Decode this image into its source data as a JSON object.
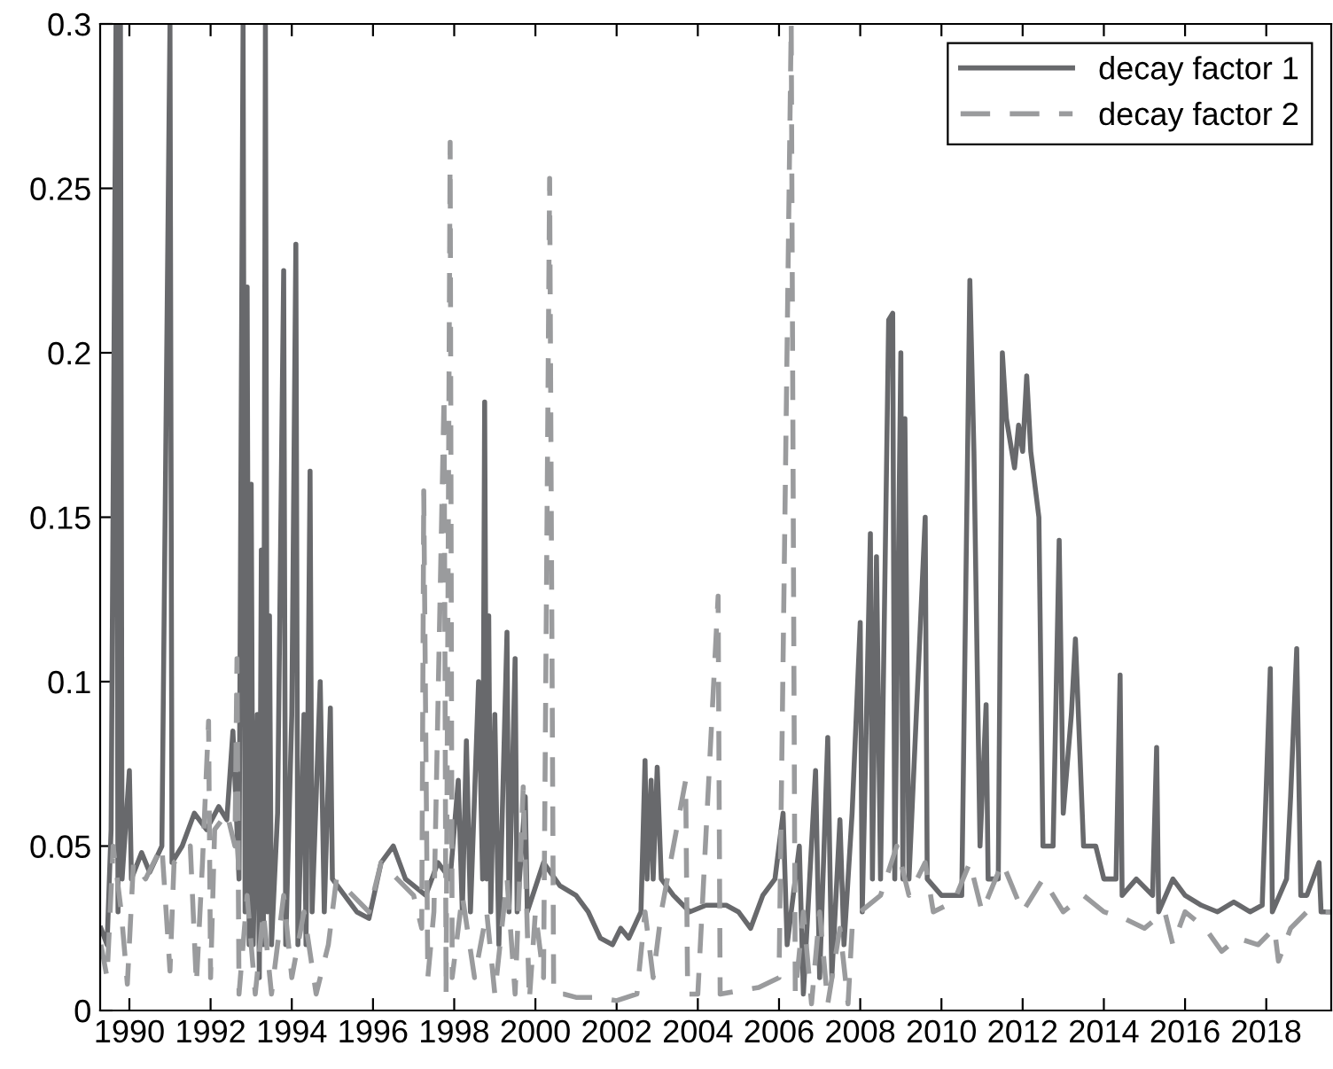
{
  "chart_data": {
    "type": "line",
    "xlim": [
      1989.28,
      2019.6
    ],
    "xticks": [
      1990,
      1992,
      1994,
      1996,
      1998,
      2000,
      2002,
      2004,
      2006,
      2008,
      2010,
      2012,
      2014,
      2016,
      2018
    ],
    "ylim": [
      0,
      0.3
    ],
    "yticks": [
      0,
      0.05,
      0.1,
      0.15,
      0.2,
      0.25,
      0.3
    ],
    "grid": false,
    "legend": "top right",
    "series": [
      {
        "name": "decay factor 1",
        "color": "#68696c",
        "line_style": "solid",
        "x": [
          1989.3,
          1989.45,
          1989.55,
          1989.67,
          1989.72,
          1989.78,
          1989.82,
          1990.0,
          1990.05,
          1990.3,
          1990.5,
          1990.8,
          1991.0,
          1991.05,
          1991.3,
          1991.6,
          1991.9,
          1992.2,
          1992.4,
          1992.55,
          1992.7,
          1992.8,
          1992.85,
          1992.9,
          1992.95,
          1993.0,
          1993.05,
          1993.15,
          1993.2,
          1993.25,
          1993.3,
          1993.35,
          1993.4,
          1993.45,
          1993.5,
          1993.65,
          1993.8,
          1993.85,
          1994.0,
          1994.1,
          1994.15,
          1994.3,
          1994.35,
          1994.45,
          1994.5,
          1994.7,
          1994.8,
          1994.95,
          1995.0,
          1995.3,
          1995.6,
          1995.9,
          1996.2,
          1996.5,
          1996.8,
          1997.3,
          1997.6,
          1997.9,
          1998.1,
          1998.2,
          1998.3,
          1998.4,
          1998.6,
          1998.7,
          1998.75,
          1998.8,
          1998.85,
          1998.9,
          1999.0,
          1999.1,
          1999.3,
          1999.35,
          1999.5,
          1999.55,
          1999.75,
          1999.8,
          2000.2,
          2000.6,
          2001.0,
          2001.3,
          2001.6,
          2001.9,
          2002.1,
          2002.3,
          2002.6,
          2002.7,
          2002.75,
          2002.85,
          2002.9,
          2003.0,
          2003.1,
          2003.4,
          2003.8,
          2004.2,
          2004.7,
          2005.0,
          2005.3,
          2005.6,
          2005.9,
          2006.1,
          2006.2,
          2006.5,
          2006.6,
          2006.9,
          2007.0,
          2007.2,
          2007.3,
          2007.5,
          2007.6,
          2007.8,
          2008.0,
          2008.05,
          2008.25,
          2008.3,
          2008.4,
          2008.5,
          2008.7,
          2008.8,
          2008.85,
          2009.0,
          2009.05,
          2009.1,
          2009.2,
          2009.6,
          2009.65,
          2010.0,
          2010.5,
          2010.7,
          2010.8,
          2010.95,
          2011.1,
          2011.15,
          2011.4,
          2011.5,
          2011.6,
          2011.8,
          2011.9,
          2012.0,
          2012.1,
          2012.2,
          2012.4,
          2012.5,
          2012.75,
          2012.9,
          2013.0,
          2013.2,
          2013.3,
          2013.5,
          2013.8,
          2014.0,
          2014.3,
          2014.4,
          2014.45,
          2014.8,
          2015.2,
          2015.3,
          2015.35,
          2015.7,
          2016.0,
          2016.4,
          2016.8,
          2017.2,
          2017.6,
          2017.9,
          2018.1,
          2018.15,
          2018.5,
          2018.6,
          2018.75,
          2018.85,
          2019.0,
          2019.3,
          2019.35,
          2019.6
        ],
        "values": [
          0.025,
          0.02,
          0.055,
          0.3,
          0.03,
          0.3,
          0.04,
          0.073,
          0.04,
          0.048,
          0.042,
          0.05,
          0.3,
          0.045,
          0.05,
          0.06,
          0.055,
          0.062,
          0.058,
          0.085,
          0.04,
          0.3,
          0.03,
          0.22,
          0.02,
          0.16,
          0.02,
          0.09,
          0.01,
          0.14,
          0.02,
          0.3,
          0.03,
          0.12,
          0.02,
          0.06,
          0.225,
          0.02,
          0.09,
          0.233,
          0.02,
          0.09,
          0.02,
          0.164,
          0.03,
          0.1,
          0.03,
          0.092,
          0.04,
          0.035,
          0.03,
          0.028,
          0.045,
          0.05,
          0.04,
          0.035,
          0.045,
          0.04,
          0.07,
          0.03,
          0.082,
          0.03,
          0.1,
          0.04,
          0.185,
          0.04,
          0.12,
          0.03,
          0.09,
          0.02,
          0.115,
          0.03,
          0.107,
          0.03,
          0.065,
          0.03,
          0.045,
          0.038,
          0.035,
          0.03,
          0.022,
          0.02,
          0.025,
          0.022,
          0.03,
          0.076,
          0.04,
          0.07,
          0.04,
          0.074,
          0.04,
          0.035,
          0.03,
          0.032,
          0.032,
          0.03,
          0.025,
          0.035,
          0.04,
          0.06,
          0.02,
          0.05,
          0.005,
          0.073,
          0.01,
          0.083,
          0.01,
          0.058,
          0.02,
          0.06,
          0.118,
          0.03,
          0.145,
          0.04,
          0.138,
          0.04,
          0.21,
          0.212,
          0.04,
          0.2,
          0.04,
          0.18,
          0.04,
          0.15,
          0.04,
          0.035,
          0.035,
          0.222,
          0.17,
          0.05,
          0.093,
          0.04,
          0.04,
          0.2,
          0.18,
          0.165,
          0.178,
          0.17,
          0.193,
          0.17,
          0.15,
          0.05,
          0.05,
          0.143,
          0.06,
          0.09,
          0.113,
          0.05,
          0.05,
          0.04,
          0.04,
          0.102,
          0.035,
          0.04,
          0.035,
          0.08,
          0.03,
          0.04,
          0.035,
          0.032,
          0.03,
          0.033,
          0.03,
          0.032,
          0.104,
          0.03,
          0.04,
          0.065,
          0.11,
          0.035,
          0.035,
          0.045,
          0.03,
          0.03
        ]
      },
      {
        "name": "decay factor 2",
        "color": "#9a9b9d",
        "line_style": "dashed",
        "x": [
          1989.3,
          1989.45,
          1989.6,
          1989.8,
          1989.95,
          1990.1,
          1990.4,
          1990.8,
          1991.0,
          1991.1,
          1991.5,
          1991.65,
          1991.8,
          1991.95,
          1992.0,
          1992.1,
          1992.4,
          1992.6,
          1992.65,
          1992.7,
          1992.9,
          1993.1,
          1993.3,
          1993.5,
          1993.8,
          1994.0,
          1994.3,
          1994.6,
          1994.9,
          1995.1,
          1995.5,
          1995.9,
          1996.2,
          1996.6,
          1997.0,
          1997.2,
          1997.25,
          1997.35,
          1997.5,
          1997.75,
          1997.8,
          1997.9,
          1997.95,
          1998.2,
          1998.5,
          1998.8,
          1999.0,
          1999.3,
          1999.5,
          1999.7,
          1999.85,
          2000.0,
          2000.2,
          2000.35,
          2000.45,
          2000.7,
          2001.0,
          2001.5,
          2002.0,
          2002.5,
          2002.7,
          2002.9,
          2003.1,
          2003.7,
          2003.75,
          2004.0,
          2004.5,
          2004.55,
          2005.0,
          2005.5,
          2006.0,
          2006.3,
          2006.4,
          2006.6,
          2006.8,
          2007.0,
          2007.2,
          2007.5,
          2007.7,
          2007.8,
          2008.0,
          2008.5,
          2008.9,
          2009.2,
          2009.6,
          2009.8,
          2010.3,
          2010.7,
          2011.0,
          2011.5,
          2012.0,
          2012.5,
          2013.0,
          2013.5,
          2014.0,
          2014.5,
          2015.0,
          2015.5,
          2015.7,
          2016.0,
          2016.5,
          2016.9,
          2017.3,
          2017.8,
          2018.2,
          2018.3,
          2018.6,
          2019.0,
          2019.6
        ],
        "values": [
          0.02,
          0.01,
          0.05,
          0.03,
          0.008,
          0.045,
          0.04,
          0.05,
          0.012,
          0.045,
          0.05,
          0.008,
          0.045,
          0.088,
          0.01,
          0.055,
          0.06,
          0.05,
          0.107,
          0.005,
          0.035,
          0.005,
          0.03,
          0.005,
          0.035,
          0.01,
          0.03,
          0.005,
          0.02,
          0.04,
          0.035,
          0.03,
          0.045,
          0.04,
          0.035,
          0.025,
          0.158,
          0.01,
          0.03,
          0.187,
          0.005,
          0.264,
          0.01,
          0.035,
          0.01,
          0.03,
          0.005,
          0.04,
          0.005,
          0.068,
          0.003,
          0.03,
          0.01,
          0.253,
          0.005,
          0.005,
          0.004,
          0.004,
          0.003,
          0.005,
          0.03,
          0.01,
          0.03,
          0.07,
          0.005,
          0.005,
          0.126,
          0.005,
          0.006,
          0.007,
          0.01,
          0.3,
          0.005,
          0.03,
          0.002,
          0.03,
          0.002,
          0.025,
          0.002,
          0.025,
          0.03,
          0.035,
          0.05,
          0.035,
          0.045,
          0.03,
          0.033,
          0.045,
          0.03,
          0.045,
          0.03,
          0.04,
          0.03,
          0.035,
          0.03,
          0.028,
          0.025,
          0.03,
          0.02,
          0.03,
          0.025,
          0.018,
          0.022,
          0.02,
          0.025,
          0.015,
          0.025,
          0.03,
          0.03
        ]
      }
    ]
  }
}
